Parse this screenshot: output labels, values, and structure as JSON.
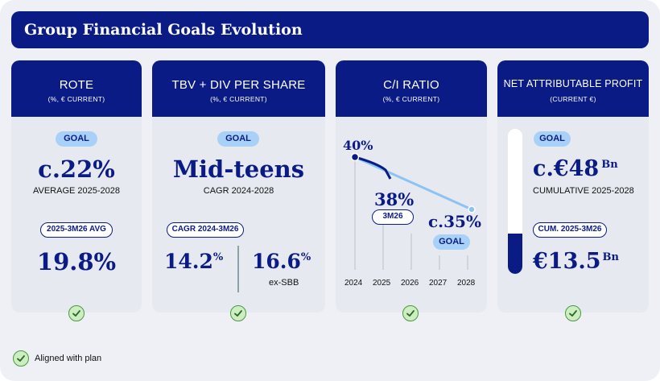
{
  "title": "Group Financial Goals Evolution",
  "rote": {
    "title": "ROTE",
    "subtitle": "(%, € CURRENT)",
    "goal_label": "GOAL",
    "goal_value": "c.22%",
    "goal_caption": "AVERAGE 2025-2028",
    "actual_label": "2025-3M26 AVG",
    "actual_value": "19.8%"
  },
  "tbv": {
    "title": "TBV + DIV PER SHARE",
    "subtitle": "(%, € CURRENT)",
    "goal_label": "GOAL",
    "goal_value": "Mid-teens",
    "goal_caption": "CAGR 2024-2028",
    "actual_label": "CAGR 2024-3M26",
    "actual_value_main": "14.2",
    "actual_value_main_unit": "%",
    "actual_value_alt": "16.6",
    "actual_value_alt_unit": "%",
    "actual_value_alt_caption": "ex-SBB"
  },
  "ci": {
    "title": "C/I RATIO",
    "subtitle": "(%, € CURRENT)",
    "label_2024": "40%",
    "label_3m26": "38%",
    "pill_3m26": "3M26",
    "label_goal": "c.35%",
    "goal_label": "GOAL",
    "years": [
      "2024",
      "2025",
      "2026",
      "2027",
      "2028"
    ]
  },
  "profit": {
    "title": "NET ATTRIBUTABLE PROFIT",
    "subtitle": "(CURRENT €)",
    "goal_label": "GOAL",
    "goal_value": "c.€48",
    "goal_unit": "Bn",
    "goal_caption": "CUMULATIVE 2025-2028",
    "actual_label": "CUM. 2025-3M26",
    "actual_value": "€13.5",
    "actual_unit": "Bn",
    "progress_fraction": 0.28
  },
  "legend": "Aligned with plan",
  "colors": {
    "navy": "#0b1b85",
    "light_blue": "#a9d1f7",
    "line_light": "#8cc3f5",
    "check_green": "#cdeec3"
  }
}
